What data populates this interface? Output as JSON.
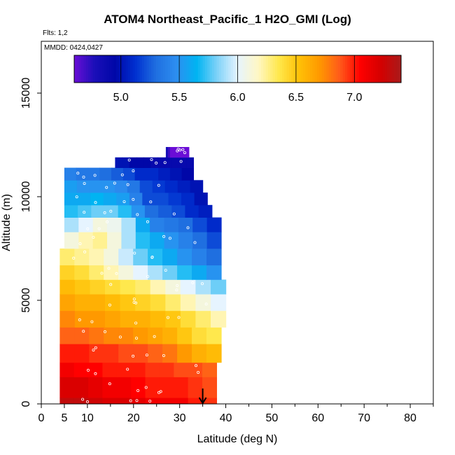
{
  "header": {
    "title": "ATOM4 Northeast_Pacific_1 H2O_GMI (Log)",
    "flights": "Flts: 1,2",
    "mmdd": "MMDD: 0424,0427"
  },
  "chart_data": {
    "type": "heatmap",
    "title": "ATOM4 Northeast_Pacific_1 H2O_GMI (Log)",
    "xlabel": "Latitude (deg N)",
    "ylabel": "Altitude (m)",
    "xlim": [
      0,
      85
    ],
    "ylim": [
      0,
      17500
    ],
    "x_ticks": [
      0,
      5,
      10,
      20,
      30,
      40,
      50,
      60,
      70,
      80
    ],
    "y_ticks": [
      0,
      5000,
      10000,
      15000
    ],
    "colorbar": {
      "range": [
        4.6,
        7.4
      ],
      "ticks": [
        5.0,
        5.5,
        6.0,
        6.5,
        7.0
      ],
      "colors": [
        "#6a0dd6",
        "#1a0fb8",
        "#0007a8",
        "#0030d0",
        "#1f6fe0",
        "#2d8ef0",
        "#00b4f2",
        "#7fd2f8",
        "#e6f4ff",
        "#fff7c4",
        "#ffe84d",
        "#ffc107",
        "#ff9900",
        "#ff5a1a",
        "#ff0000",
        "#d40000",
        "#a81a1a"
      ]
    },
    "marker": {
      "latitude": 35
    },
    "rows": [
      {
        "alt": [
          0,
          300
        ],
        "lat": [
          4,
          38
        ],
        "values": [
          7.3,
          7.3,
          7.25,
          7.2,
          7.2,
          7.15,
          7.1,
          7.1,
          7.1,
          7.0,
          6.95
        ]
      },
      {
        "alt": [
          300,
          1300
        ],
        "lat": [
          4,
          38
        ],
        "values": [
          7.2,
          7.2,
          7.15,
          7.1,
          7.1,
          7.05,
          7.0,
          7.0,
          7.0,
          6.95,
          6.9
        ]
      },
      {
        "alt": [
          1300,
          2000
        ],
        "lat": [
          4,
          38
        ],
        "values": [
          7.1,
          7.05,
          7.05,
          7.0,
          7.0,
          7.0,
          6.95,
          6.95,
          6.9,
          6.9,
          6.85
        ]
      },
      {
        "alt": [
          2000,
          2900
        ],
        "lat": [
          4,
          39
        ],
        "values": [
          7.0,
          7.0,
          6.95,
          6.95,
          6.9,
          6.9,
          6.85,
          6.8,
          6.7,
          6.6,
          6.55
        ]
      },
      {
        "alt": [
          2900,
          3700
        ],
        "lat": [
          4,
          39
        ],
        "values": [
          6.85,
          6.85,
          6.8,
          6.75,
          6.75,
          6.7,
          6.65,
          6.6,
          6.5,
          6.4,
          6.35
        ]
      },
      {
        "alt": [
          3700,
          4500
        ],
        "lat": [
          4,
          40
        ],
        "values": [
          6.75,
          6.7,
          6.7,
          6.65,
          6.6,
          6.6,
          6.55,
          6.5,
          6.4,
          6.3,
          6.2
        ]
      },
      {
        "alt": [
          4500,
          5300
        ],
        "lat": [
          4,
          40
        ],
        "values": [
          6.65,
          6.6,
          6.6,
          6.55,
          6.5,
          6.45,
          6.4,
          6.3,
          6.2,
          6.1,
          6.0
        ]
      },
      {
        "alt": [
          5300,
          6000
        ],
        "lat": [
          4,
          40
        ],
        "values": [
          6.55,
          6.5,
          6.45,
          6.4,
          6.35,
          6.3,
          6.2,
          6.1,
          6.0,
          5.9,
          5.8
        ]
      },
      {
        "alt": [
          6000,
          6700
        ],
        "lat": [
          4,
          39
        ],
        "values": [
          6.45,
          6.4,
          6.3,
          6.2,
          6.1,
          6.0,
          5.9,
          5.8,
          5.7,
          5.6,
          5.5
        ]
      },
      {
        "alt": [
          6700,
          7500
        ],
        "lat": [
          4,
          39
        ],
        "values": [
          6.3,
          6.25,
          6.2,
          6.1,
          5.95,
          5.8,
          5.7,
          5.6,
          5.5,
          5.4,
          5.3
        ]
      },
      {
        "alt": [
          7500,
          8300
        ],
        "lat": [
          5,
          39
        ],
        "values": [
          6.1,
          6.2,
          6.25,
          6.1,
          5.9,
          5.7,
          5.6,
          5.5,
          5.4,
          5.3,
          5.2
        ]
      },
      {
        "alt": [
          8300,
          9000
        ],
        "lat": [
          5,
          39
        ],
        "values": [
          5.9,
          6.0,
          6.1,
          6.05,
          5.9,
          5.6,
          5.4,
          5.35,
          5.3,
          5.2,
          5.1
        ]
      },
      {
        "alt": [
          9000,
          9600
        ],
        "lat": [
          5,
          37
        ],
        "values": [
          5.7,
          5.75,
          5.8,
          5.8,
          5.7,
          5.5,
          5.3,
          5.25,
          5.2,
          5.1,
          5.05
        ]
      },
      {
        "alt": [
          9600,
          10200
        ],
        "lat": [
          5,
          36
        ],
        "values": [
          5.6,
          5.6,
          5.65,
          5.6,
          5.55,
          5.4,
          5.2,
          5.2,
          5.15,
          5.1,
          5.0
        ]
      },
      {
        "alt": [
          10200,
          10800
        ],
        "lat": [
          5,
          35
        ],
        "values": [
          5.55,
          5.5,
          5.5,
          5.5,
          5.45,
          5.35,
          5.2,
          5.15,
          5.1,
          5.05,
          5.0
        ]
      },
      {
        "alt": [
          10800,
          11400
        ],
        "lat": [
          5,
          33
        ],
        "values": [
          5.4,
          5.35,
          5.35,
          5.3,
          5.25,
          5.2,
          5.1,
          5.1,
          5.05,
          5.0,
          4.95
        ]
      },
      {
        "alt": [
          11400,
          11900
        ],
        "lat": [
          16,
          33
        ],
        "values": [
          5.0,
          5.0,
          4.95,
          4.95,
          4.95,
          4.9,
          4.9,
          4.9,
          4.9,
          4.9,
          4.9
        ]
      },
      {
        "alt": [
          11900,
          12400
        ],
        "lat": [
          27,
          32
        ],
        "values": [
          4.8,
          4.7,
          4.6,
          4.6,
          4.6,
          4.6,
          4.6,
          4.6,
          4.6,
          4.6,
          4.6
        ]
      }
    ]
  }
}
